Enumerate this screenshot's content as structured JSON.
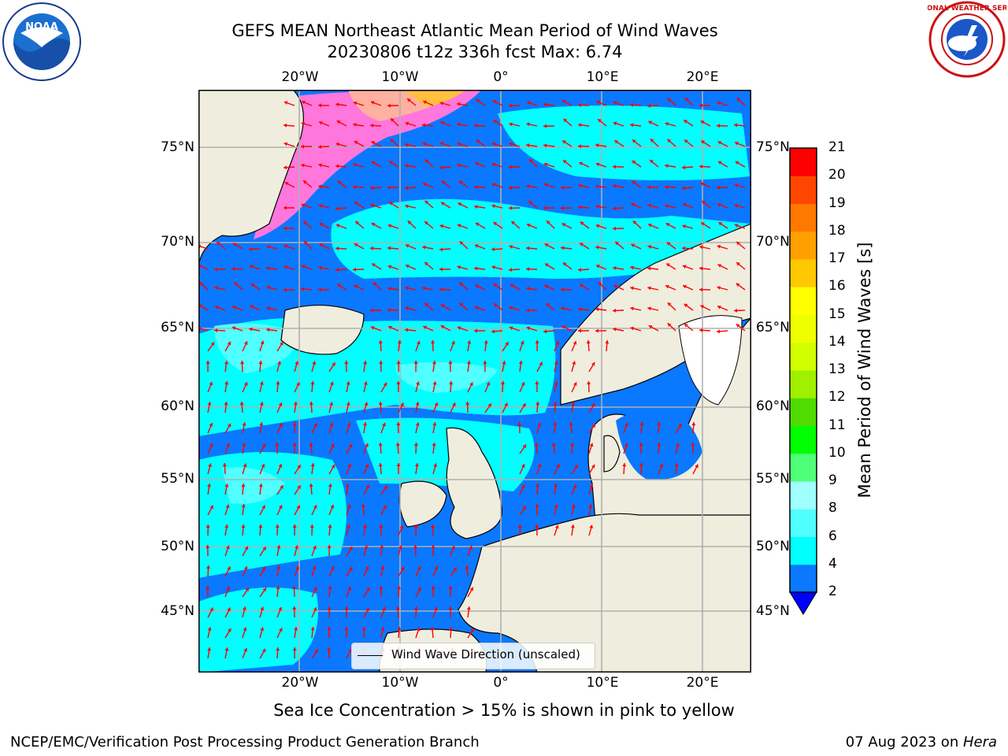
{
  "title": {
    "line1": "GEFS MEAN Northeast Atlantic Mean Period of Wind Waves",
    "line2": "20230806 t12z 336h fcst   Max: 6.74"
  },
  "axes": {
    "lon_ticks": [
      "20°W",
      "10°W",
      "0°",
      "10°E",
      "20°E"
    ],
    "lat_ticks": [
      "75°N",
      "70°N",
      "65°N",
      "60°N",
      "55°N",
      "50°N",
      "45°N"
    ]
  },
  "colorbar": {
    "label": "Mean Period of Wind Waves [s]",
    "ticks": [
      "2",
      "4",
      "6",
      "8",
      "9",
      "10",
      "11",
      "12",
      "13",
      "14",
      "15",
      "16",
      "17",
      "18",
      "19",
      "20",
      "21"
    ],
    "colors": [
      "#0a78ff",
      "#00ffff",
      "#50ffff",
      "#a0ffff",
      "#50ff78",
      "#00ff00",
      "#50dc00",
      "#a0f000",
      "#d2ff00",
      "#f0ff00",
      "#ffff00",
      "#ffc800",
      "#ffa000",
      "#ff7800",
      "#ff4600",
      "#ff0000"
    ],
    "under_color": "#0000ff"
  },
  "legend": {
    "label": "Wind Wave Direction (unscaled)"
  },
  "note": "Sea Ice Concentration > 15% is shown in pink to yellow",
  "footer": {
    "left": "NCEP/EMC/Verification Post Processing Product Generation Branch",
    "right_date": "07 Aug 2023 on ",
    "right_host": "Hera"
  },
  "colors": {
    "land": "#efedde",
    "wave_2_4": "#0a78ff",
    "wave_4_6": "#00ffff",
    "wave_6_8": "#50ffff",
    "arrow": "#ff0000",
    "grid": "#b0b0b0",
    "ice": "#ff77dd"
  },
  "logos": {
    "left": "NOAA",
    "right": "NATIONAL WEATHER SERVICE"
  }
}
